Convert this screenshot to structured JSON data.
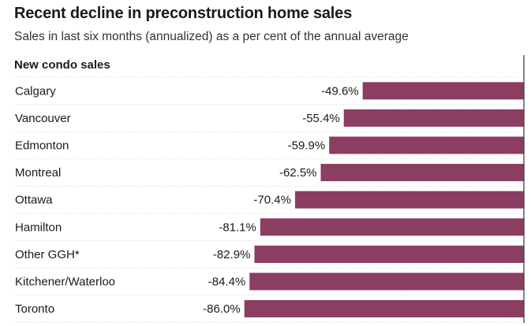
{
  "title": "Recent decline in preconstruction home sales",
  "subtitle": "Sales in last six months (annualized) as a per cent of the annual average",
  "chart_data": {
    "type": "bar",
    "orientation": "horizontal",
    "section_label": "New condo sales",
    "categories": [
      "Calgary",
      "Vancouver",
      "Edmonton",
      "Montreal",
      "Ottawa",
      "Hamilton",
      "Other GGH*",
      "Kitchener/Waterloo",
      "Toronto"
    ],
    "values": [
      -49.6,
      -55.4,
      -59.9,
      -62.5,
      -70.4,
      -81.1,
      -82.9,
      -84.4,
      -86.0
    ],
    "value_labels": [
      "-49.6%",
      "-55.4%",
      "-59.9%",
      "-62.5%",
      "-70.4%",
      "-81.1%",
      "-82.9%",
      "-84.4%",
      "-86.0%"
    ],
    "bar_color": "#8b3d62",
    "xlim": [
      -100,
      0
    ],
    "grid": false,
    "legend": "none"
  }
}
